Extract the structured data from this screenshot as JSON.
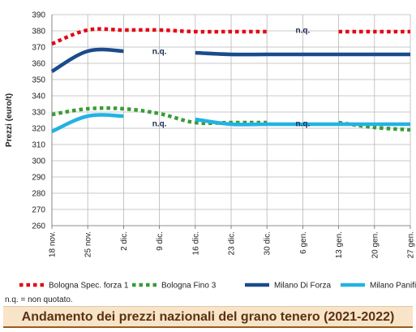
{
  "chart_data": {
    "type": "line",
    "title": "Andamento dei prezzi nazionali del grano tenero (2021-2022)",
    "ylabel": "Prezzi (euro/t)",
    "xlabel": "",
    "ylim": [
      260,
      390
    ],
    "yticks": [
      260,
      270,
      280,
      290,
      300,
      310,
      320,
      330,
      340,
      350,
      360,
      370,
      380,
      390
    ],
    "categories": [
      "18 nov.",
      "25 nov.",
      "2 dic.",
      "9 dic.",
      "16 dic.",
      "23 dic.",
      "30 dic.",
      "6 gen.",
      "13 gen.",
      "20 gen.",
      "27 gen."
    ],
    "grid": true,
    "legend_position": "bottom",
    "series": [
      {
        "name": "Bologna Spec. forza 1",
        "color": "#e30613",
        "style": "dotted",
        "values": [
          372,
          380.5,
          380.5,
          380.5,
          379.5,
          379.5,
          379.5,
          null,
          379.5,
          379.5,
          379.5
        ]
      },
      {
        "name": "Bologna Fino 3",
        "color": "#3a9b35",
        "style": "dotted",
        "values": [
          328.5,
          332,
          332,
          329,
          323.5,
          323.5,
          323.5,
          null,
          323.5,
          320.5,
          319
        ]
      },
      {
        "name": "Milano Di Forza",
        "color": "#1a4b8c",
        "style": "solid",
        "values": [
          355,
          367.5,
          367.5,
          null,
          366.5,
          365.5,
          365.5,
          365.5,
          365.5,
          365.5,
          365.5
        ]
      },
      {
        "name": "Milano Panificabile",
        "color": "#22b2e4",
        "style": "solid",
        "values": [
          318,
          327.5,
          327.5,
          null,
          325.5,
          322.5,
          322.5,
          322.5,
          322.5,
          322.5,
          322.5
        ]
      }
    ],
    "annotations": [
      {
        "text": "n.q.",
        "x": "9 dic.",
        "y": 367.5
      },
      {
        "text": "n.q.",
        "x": "6 gen.",
        "y": 380.5
      },
      {
        "text": "n.q.",
        "x": "9 dic.",
        "y": 323
      },
      {
        "text": "n.q.",
        "x": "6 gen.",
        "y": 323
      }
    ]
  },
  "footnote": "n.q. = non quotato."
}
